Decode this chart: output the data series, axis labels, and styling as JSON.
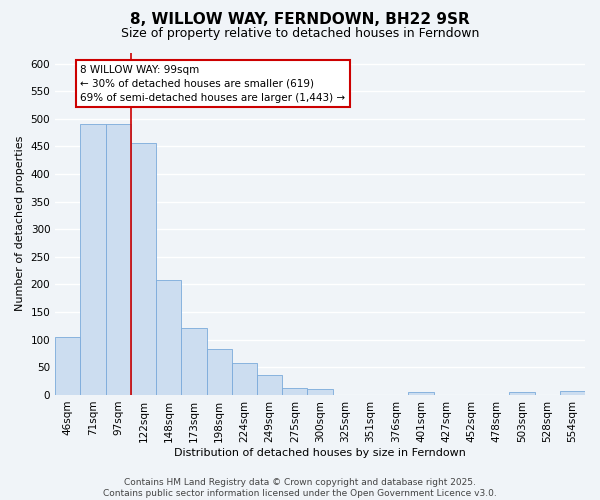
{
  "title": "8, WILLOW WAY, FERNDOWN, BH22 9SR",
  "subtitle": "Size of property relative to detached houses in Ferndown",
  "xlabel": "Distribution of detached houses by size in Ferndown",
  "ylabel": "Number of detached properties",
  "bar_labels": [
    "46sqm",
    "71sqm",
    "97sqm",
    "122sqm",
    "148sqm",
    "173sqm",
    "198sqm",
    "224sqm",
    "249sqm",
    "275sqm",
    "300sqm",
    "325sqm",
    "351sqm",
    "376sqm",
    "401sqm",
    "427sqm",
    "452sqm",
    "478sqm",
    "503sqm",
    "528sqm",
    "554sqm"
  ],
  "bar_values": [
    105,
    490,
    490,
    457,
    208,
    122,
    83,
    57,
    37,
    13,
    10,
    0,
    0,
    0,
    5,
    0,
    0,
    0,
    5,
    0,
    8
  ],
  "bar_color": "#ccddf0",
  "bar_edge_color": "#7aaadb",
  "vline_color": "#cc0000",
  "annotation_title": "8 WILLOW WAY: 99sqm",
  "annotation_line1": "← 30% of detached houses are smaller (619)",
  "annotation_line2": "69% of semi-detached houses are larger (1,443) →",
  "annotation_box_color": "#ffffff",
  "annotation_box_edge": "#cc0000",
  "ylim": [
    0,
    620
  ],
  "yticks": [
    0,
    50,
    100,
    150,
    200,
    250,
    300,
    350,
    400,
    450,
    500,
    550,
    600
  ],
  "footer_line1": "Contains HM Land Registry data © Crown copyright and database right 2025.",
  "footer_line2": "Contains public sector information licensed under the Open Government Licence v3.0.",
  "bg_color": "#f0f4f8",
  "grid_color": "#ffffff",
  "title_fontsize": 11,
  "subtitle_fontsize": 9,
  "axis_label_fontsize": 8,
  "tick_fontsize": 7.5,
  "footer_fontsize": 6.5,
  "ann_fontsize": 7.5
}
